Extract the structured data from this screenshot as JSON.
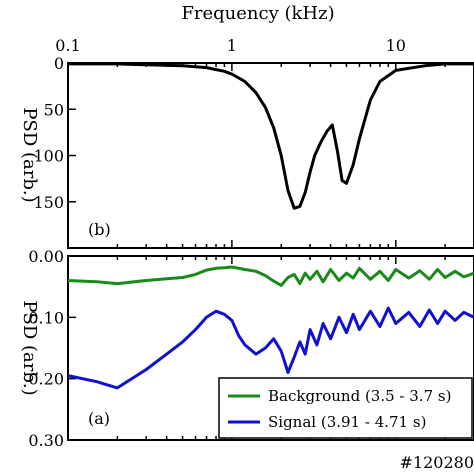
{
  "shot_label": "#120280",
  "chart_data": [
    {
      "type": "line",
      "panel": "(b)",
      "xlabel": "Frequency (kHz)",
      "ylabel": "PSD (arb.)",
      "x_scale": "log",
      "xlim": [
        0.1,
        30
      ],
      "ylim": [
        0,
        200
      ],
      "y_inverted": true,
      "x_ticks": [
        0.1,
        1,
        10
      ],
      "x_tick_labels": [
        "0.1",
        "1",
        "10"
      ],
      "y_ticks": [
        0,
        50,
        100,
        150
      ],
      "y_tick_labels": [
        "0",
        "50",
        "100",
        "150"
      ],
      "series": [
        {
          "color": "#000000",
          "x": [
            0.1,
            0.2,
            0.3,
            0.5,
            0.7,
            0.9,
            1.0,
            1.2,
            1.4,
            1.6,
            1.8,
            2.0,
            2.2,
            2.4,
            2.6,
            2.8,
            3.0,
            3.2,
            3.5,
            3.8,
            4.1,
            4.4,
            4.7,
            5.0,
            5.5,
            6.0,
            7.0,
            8.0,
            10,
            15,
            20,
            30
          ],
          "y": [
            1,
            1,
            2,
            3,
            5,
            9,
            12,
            20,
            32,
            48,
            70,
            100,
            138,
            157,
            155,
            140,
            118,
            100,
            85,
            74,
            67,
            95,
            127,
            130,
            110,
            82,
            40,
            20,
            8,
            3,
            1,
            1
          ]
        }
      ]
    },
    {
      "type": "line",
      "panel": "(a)",
      "xlabel": "",
      "ylabel": "PSD (arb.)",
      "x_scale": "log",
      "xlim": [
        0.1,
        30
      ],
      "ylim": [
        0,
        0.3
      ],
      "y_inverted": true,
      "y_ticks": [
        0.0,
        0.1,
        0.2,
        0.3
      ],
      "y_tick_labels": [
        "0.00",
        "0.10",
        "0.20",
        "0.30"
      ],
      "legend": "bottom-right",
      "series": [
        {
          "name": "Background (3.5 - 3.7 s)",
          "color": "#1a8a1a",
          "x": [
            0.1,
            0.15,
            0.2,
            0.3,
            0.4,
            0.5,
            0.6,
            0.7,
            0.8,
            0.9,
            1.0,
            1.1,
            1.2,
            1.4,
            1.6,
            1.8,
            2.0,
            2.2,
            2.4,
            2.6,
            2.8,
            3.0,
            3.3,
            3.6,
            4.0,
            4.5,
            5.0,
            5.5,
            6.0,
            7.0,
            8.0,
            9.0,
            10,
            12,
            14,
            16,
            18,
            20,
            23,
            26,
            30
          ],
          "y": [
            0.04,
            0.042,
            0.045,
            0.04,
            0.037,
            0.035,
            0.03,
            0.023,
            0.02,
            0.019,
            0.018,
            0.02,
            0.022,
            0.025,
            0.032,
            0.041,
            0.048,
            0.035,
            0.03,
            0.045,
            0.028,
            0.038,
            0.025,
            0.042,
            0.022,
            0.04,
            0.028,
            0.036,
            0.02,
            0.038,
            0.025,
            0.04,
            0.022,
            0.036,
            0.024,
            0.038,
            0.022,
            0.035,
            0.025,
            0.034,
            0.028
          ]
        },
        {
          "name": "Signal (3.91 - 4.71 s)",
          "color": "#1010d0",
          "x": [
            0.1,
            0.15,
            0.2,
            0.3,
            0.4,
            0.5,
            0.6,
            0.7,
            0.8,
            0.9,
            1.0,
            1.1,
            1.2,
            1.4,
            1.6,
            1.8,
            2.0,
            2.2,
            2.4,
            2.6,
            2.8,
            3.0,
            3.3,
            3.6,
            4.0,
            4.5,
            5.0,
            5.5,
            6.0,
            7.0,
            8.0,
            9.0,
            10,
            12,
            14,
            16,
            18,
            20,
            23,
            26,
            30
          ],
          "y": [
            0.195,
            0.205,
            0.215,
            0.185,
            0.16,
            0.14,
            0.12,
            0.1,
            0.09,
            0.095,
            0.105,
            0.13,
            0.145,
            0.16,
            0.15,
            0.135,
            0.155,
            0.19,
            0.165,
            0.14,
            0.16,
            0.12,
            0.145,
            0.11,
            0.135,
            0.1,
            0.125,
            0.095,
            0.12,
            0.09,
            0.115,
            0.085,
            0.11,
            0.092,
            0.115,
            0.088,
            0.11,
            0.09,
            0.105,
            0.092,
            0.1
          ]
        }
      ]
    }
  ]
}
